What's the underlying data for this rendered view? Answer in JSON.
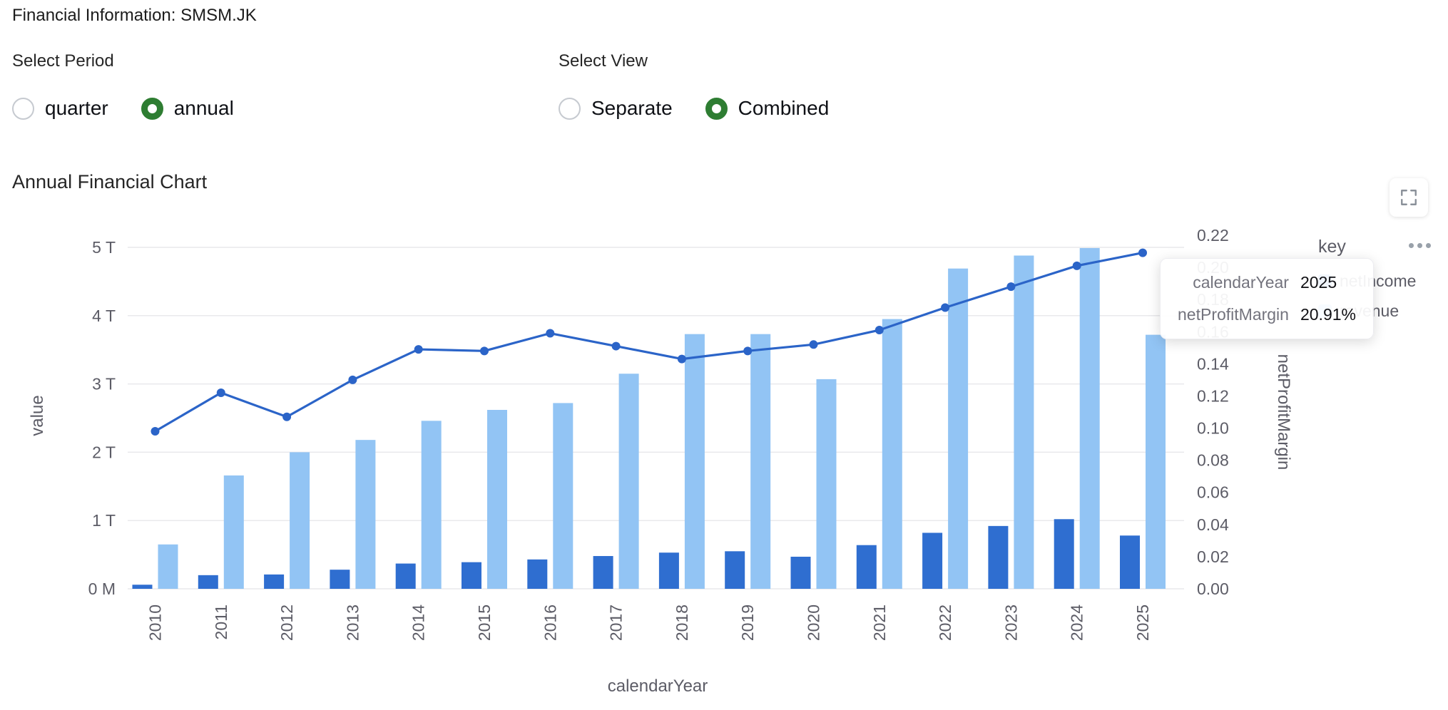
{
  "page": {
    "title": "Financial Information: SMSM.JK"
  },
  "controls": {
    "period": {
      "label": "Select Period",
      "options": [
        {
          "label": "quarter",
          "selected": false
        },
        {
          "label": "annual",
          "selected": true
        }
      ]
    },
    "view": {
      "label": "Select View",
      "options": [
        {
          "label": "Separate",
          "selected": false
        },
        {
          "label": "Combined",
          "selected": true
        }
      ]
    }
  },
  "chart": {
    "heading": "Annual Financial Chart",
    "legend": {
      "title": "key",
      "items": [
        {
          "label": "netIncome",
          "color": "#2f6ed0"
        },
        {
          "label": "revenue",
          "color": "#92c4f4"
        }
      ]
    },
    "tooltip": {
      "rows": [
        {
          "label": "calendarYear",
          "value": "2025"
        },
        {
          "label": "netProfitMargin",
          "value": "20.91%"
        }
      ]
    }
  },
  "icons": {
    "fullscreen": "expand-corners",
    "menu": "ellipsis"
  },
  "colors": {
    "accent_green": "#2e7d32",
    "net_income": "#2f6ed0",
    "revenue": "#92c4f4",
    "line": "#2b64c8",
    "grid": "#e9e9ec",
    "axis_text": "#5c5c66",
    "title_text": "#262626"
  },
  "chart_data": {
    "type": "bar",
    "subtype": "grouped-bar-with-line-combo",
    "categories": [
      2010,
      2011,
      2012,
      2013,
      2014,
      2015,
      2016,
      2017,
      2018,
      2019,
      2020,
      2021,
      2022,
      2023,
      2024,
      2025
    ],
    "series": [
      {
        "name": "netIncome",
        "type": "bar",
        "axis": "left",
        "unit": "T",
        "color": "#2f6ed0",
        "values": [
          0.06,
          0.2,
          0.21,
          0.28,
          0.37,
          0.39,
          0.43,
          0.48,
          0.53,
          0.55,
          0.47,
          0.64,
          0.82,
          0.92,
          1.02,
          0.78
        ]
      },
      {
        "name": "revenue",
        "type": "bar",
        "axis": "left",
        "unit": "T",
        "color": "#92c4f4",
        "values": [
          0.65,
          1.66,
          2.0,
          2.18,
          2.46,
          2.62,
          2.72,
          3.15,
          3.73,
          3.73,
          3.07,
          3.95,
          4.69,
          4.88,
          4.99,
          3.72
        ]
      },
      {
        "name": "netProfitMargin",
        "type": "line",
        "axis": "right",
        "color": "#2b64c8",
        "values": [
          0.098,
          0.122,
          0.107,
          0.13,
          0.149,
          0.148,
          0.159,
          0.151,
          0.143,
          0.148,
          0.152,
          0.161,
          0.175,
          0.188,
          0.201,
          0.2091
        ]
      }
    ],
    "left_axis": {
      "label": "value",
      "ticks": [
        "0 M",
        "1 T",
        "2 T",
        "3 T",
        "4 T",
        "5 T"
      ],
      "range": [
        0,
        5
      ]
    },
    "right_axis": {
      "label": "netProfitMargin",
      "ticks": [
        "0.00",
        "0.02",
        "0.04",
        "0.06",
        "0.08",
        "0.10",
        "0.12",
        "0.14",
        "0.16",
        "0.18",
        "0.20",
        "0.22"
      ],
      "range": [
        0,
        0.22
      ]
    },
    "xlabel": "calendarYear",
    "grid": "horizontal",
    "legend_position": "right"
  }
}
